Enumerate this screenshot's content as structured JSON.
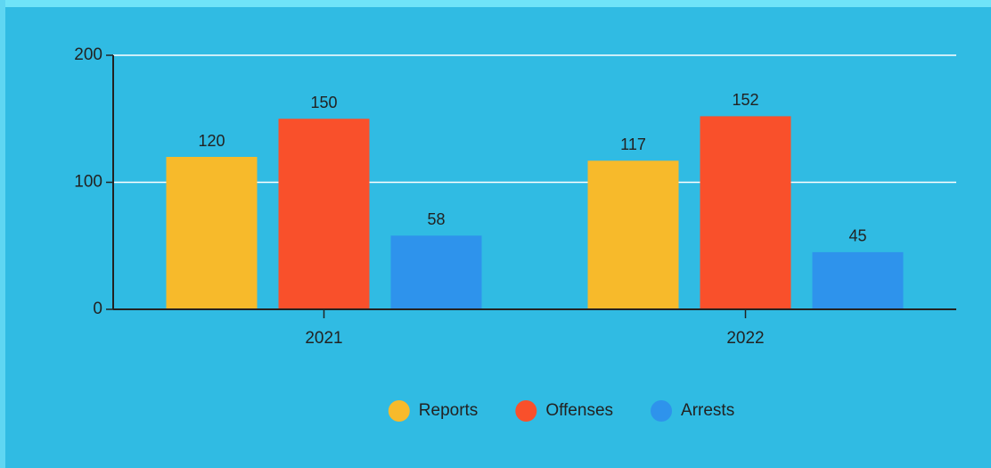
{
  "chart_data": {
    "type": "bar",
    "categories": [
      "2021",
      "2022"
    ],
    "series": [
      {
        "name": "Reports",
        "color": "#f7ba2b",
        "values": [
          120,
          117
        ]
      },
      {
        "name": "Offenses",
        "color": "#f9502b",
        "values": [
          150,
          152
        ]
      },
      {
        "name": "Arrests",
        "color": "#2e93ec",
        "values": [
          58,
          45
        ]
      }
    ],
    "ylim": [
      0,
      200
    ],
    "yticks": [
      0,
      100,
      200
    ],
    "grid": true,
    "legend": "bottom"
  }
}
